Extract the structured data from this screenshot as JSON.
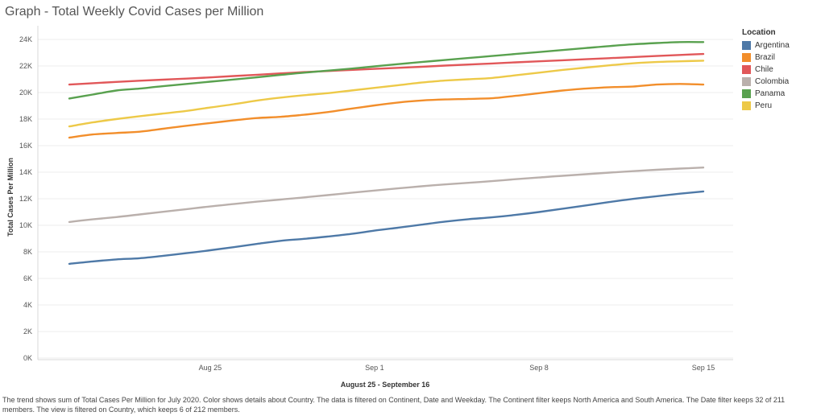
{
  "title": "Graph - Total Weekly Covid Cases per Million",
  "caption": "The trend shows sum of Total Cases Per Million for July 2020.  Color shows details about Country. The data is filtered on Continent, Date and Weekday. The Continent filter keeps North America and South America. The Date filter keeps 32 of 211 members. The view is filtered on Country, which keeps 6 of 212 members.",
  "legend": {
    "title": "Location",
    "items": [
      {
        "label": "Argentina",
        "color": "#4e79a7"
      },
      {
        "label": "Brazil",
        "color": "#f28e2b"
      },
      {
        "label": "Chile",
        "color": "#e15759"
      },
      {
        "label": "Colombia",
        "color": "#bab0ac"
      },
      {
        "label": "Panama",
        "color": "#59a14f"
      },
      {
        "label": "Peru",
        "color": "#edc948"
      }
    ]
  },
  "chart_data": {
    "type": "line",
    "xlabel": "August 25 - September 16",
    "ylabel": "Total Cases Per Million",
    "ylim": [
      0,
      24000
    ],
    "yticks": [
      0,
      2000,
      4000,
      6000,
      8000,
      10000,
      12000,
      14000,
      16000,
      18000,
      20000,
      22000,
      24000
    ],
    "ytick_labels": [
      "0K",
      "2K",
      "4K",
      "6K",
      "8K",
      "10K",
      "12K",
      "14K",
      "16K",
      "18K",
      "20K",
      "22K",
      "24K"
    ],
    "xtick_labels": [
      "Aug 25",
      "Sep 1",
      "Sep 8",
      "Sep 15"
    ],
    "xtick_days": [
      6,
      13,
      20,
      27
    ],
    "x_days": [
      0,
      1,
      2,
      3,
      4,
      5,
      6,
      7,
      8,
      9,
      10,
      11,
      12,
      13,
      14,
      15,
      16,
      17,
      18,
      19,
      20,
      21,
      22,
      23,
      24,
      25,
      26,
      27
    ],
    "grid": true,
    "legend_position": "right",
    "series": [
      {
        "name": "Argentina",
        "color": "#4e79a7",
        "values": [
          7100,
          7280,
          7430,
          7520,
          7700,
          7900,
          8120,
          8350,
          8600,
          8830,
          8980,
          9150,
          9350,
          9600,
          9820,
          10050,
          10280,
          10460,
          10600,
          10780,
          11000,
          11250,
          11500,
          11750,
          11990,
          12190,
          12380,
          12550
        ]
      },
      {
        "name": "Brazil",
        "color": "#f28e2b",
        "values": [
          16600,
          16840,
          16950,
          17050,
          17270,
          17500,
          17700,
          17900,
          18080,
          18170,
          18330,
          18530,
          18780,
          19030,
          19250,
          19400,
          19480,
          19520,
          19570,
          19750,
          19950,
          20150,
          20300,
          20400,
          20450,
          20600,
          20650,
          20600
        ]
      },
      {
        "name": "Chile",
        "color": "#e15759",
        "values": [
          20600,
          20700,
          20800,
          20890,
          20970,
          21050,
          21140,
          21240,
          21340,
          21440,
          21540,
          21620,
          21700,
          21780,
          21860,
          21940,
          22030,
          22110,
          22190,
          22270,
          22350,
          22430,
          22510,
          22590,
          22670,
          22750,
          22830,
          22900
        ]
      },
      {
        "name": "Colombia",
        "color": "#bab0ac",
        "values": [
          10250,
          10450,
          10620,
          10820,
          11020,
          11220,
          11420,
          11600,
          11780,
          11940,
          12100,
          12270,
          12450,
          12620,
          12780,
          12940,
          13080,
          13200,
          13330,
          13470,
          13600,
          13730,
          13850,
          13970,
          14080,
          14180,
          14270,
          14350
        ]
      },
      {
        "name": "Panama",
        "color": "#59a14f",
        "values": [
          19550,
          19850,
          20150,
          20300,
          20480,
          20650,
          20820,
          20980,
          21150,
          21330,
          21500,
          21650,
          21800,
          21970,
          22140,
          22300,
          22450,
          22600,
          22750,
          22900,
          23050,
          23200,
          23350,
          23500,
          23630,
          23730,
          23800,
          23800
        ]
      },
      {
        "name": "Peru",
        "color": "#edc948",
        "values": [
          17450,
          17750,
          18000,
          18220,
          18420,
          18620,
          18870,
          19120,
          19400,
          19620,
          19800,
          19950,
          20150,
          20350,
          20550,
          20750,
          20900,
          21000,
          21100,
          21300,
          21500,
          21700,
          21880,
          22050,
          22200,
          22300,
          22350,
          22400
        ]
      }
    ]
  }
}
